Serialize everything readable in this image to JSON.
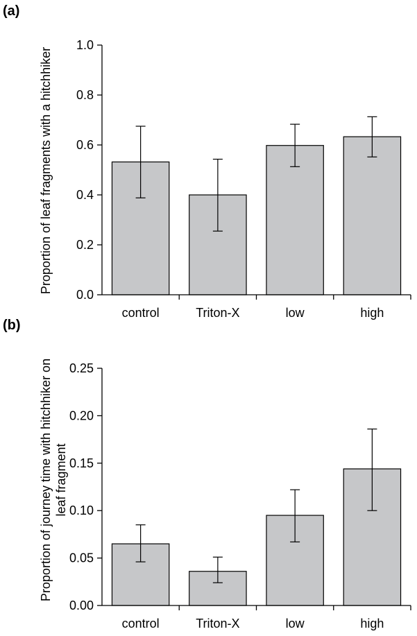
{
  "chart_data": [
    {
      "panel": "(a)",
      "type": "bar",
      "categories": [
        "control",
        "Triton-X",
        "low",
        "high"
      ],
      "values": [
        0.532,
        0.4,
        0.598,
        0.633
      ],
      "error_low": [
        0.388,
        0.255,
        0.513,
        0.552
      ],
      "error_high": [
        0.675,
        0.543,
        0.683,
        0.713
      ],
      "ylabel": "Proportion of leaf fragments with a hitchhiker",
      "ylim": [
        0.0,
        1.0
      ],
      "yticks": [
        "0.0",
        "0.2",
        "0.4",
        "0.6",
        "0.8",
        "1.0"
      ],
      "bar_color": "#c6c7c9"
    },
    {
      "panel": "(b)",
      "type": "bar",
      "categories": [
        "control",
        "Triton-X",
        "low",
        "high"
      ],
      "values": [
        0.065,
        0.036,
        0.095,
        0.144
      ],
      "error_low": [
        0.046,
        0.024,
        0.067,
        0.1
      ],
      "error_high": [
        0.085,
        0.051,
        0.122,
        0.186
      ],
      "ylabel_lines": [
        "Proportion of journey time with hitchhiker on",
        "leaf fragment"
      ],
      "ylim": [
        0.0,
        0.25
      ],
      "yticks": [
        "0.00",
        "0.05",
        "0.10",
        "0.15",
        "0.20",
        "0.25"
      ],
      "bar_color": "#c6c7c9"
    }
  ]
}
